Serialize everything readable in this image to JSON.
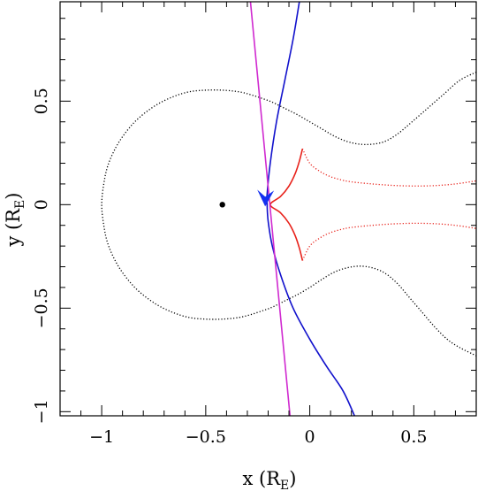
{
  "chart_data": {
    "type": "line",
    "title": "",
    "xlabel": {
      "text": "x (R",
      "sub": "E",
      "close": ")"
    },
    "ylabel": {
      "text": "y (R",
      "sub": "E",
      "close": ")"
    },
    "xlim": [
      -1.2,
      0.8
    ],
    "ylim": [
      -1.02,
      0.98
    ],
    "x_major_ticks": [
      -1,
      -0.5,
      0,
      0.5
    ],
    "x_minor_step": 0.1,
    "y_major_ticks": [
      -1,
      -0.5,
      0,
      0.5
    ],
    "y_minor_step": 0.1,
    "tick_labels_x": [
      "−1",
      "−0.5",
      "0",
      "0.5"
    ],
    "tick_labels_y": [
      "−1",
      "−0.5",
      "0",
      "0.5"
    ],
    "grid": false,
    "colors": {
      "critical_curve": "#000000",
      "caustic": "#e8211a",
      "source_trajectory": "#1111cc",
      "straight_line": "#d02ad0",
      "arrow": "#1430f0",
      "lens_point": "#000000"
    },
    "lens_point": {
      "x": -0.42,
      "y": 0.0
    },
    "series": [
      {
        "key": "critical_curve",
        "style": "dotted",
        "points": [
          [
            0.8,
            0.64
          ],
          [
            0.72,
            0.6
          ],
          [
            0.64,
            0.53
          ],
          [
            0.56,
            0.46
          ],
          [
            0.48,
            0.39
          ],
          [
            0.42,
            0.34
          ],
          [
            0.36,
            0.305
          ],
          [
            0.3,
            0.292
          ],
          [
            0.24,
            0.292
          ],
          [
            0.18,
            0.305
          ],
          [
            0.12,
            0.33
          ],
          [
            0.06,
            0.365
          ],
          [
            0.0,
            0.4
          ],
          [
            -0.06,
            0.435
          ],
          [
            -0.12,
            0.465
          ],
          [
            -0.18,
            0.495
          ],
          [
            -0.22,
            0.51
          ],
          [
            -0.28,
            0.53
          ],
          [
            -0.34,
            0.545
          ],
          [
            -0.42,
            0.553
          ],
          [
            -0.5,
            0.553
          ],
          [
            -0.58,
            0.545
          ],
          [
            -0.66,
            0.52
          ],
          [
            -0.74,
            0.48
          ],
          [
            -0.82,
            0.42
          ],
          [
            -0.88,
            0.355
          ],
          [
            -0.93,
            0.28
          ],
          [
            -0.97,
            0.19
          ],
          [
            -0.99,
            0.1
          ],
          [
            -1.0,
            0.0
          ],
          [
            -0.99,
            -0.1
          ],
          [
            -0.97,
            -0.19
          ],
          [
            -0.93,
            -0.28
          ],
          [
            -0.88,
            -0.355
          ],
          [
            -0.82,
            -0.42
          ],
          [
            -0.74,
            -0.48
          ],
          [
            -0.66,
            -0.52
          ],
          [
            -0.58,
            -0.545
          ],
          [
            -0.5,
            -0.553
          ],
          [
            -0.42,
            -0.553
          ],
          [
            -0.34,
            -0.545
          ],
          [
            -0.28,
            -0.53
          ],
          [
            -0.22,
            -0.51
          ],
          [
            -0.18,
            -0.495
          ],
          [
            -0.12,
            -0.465
          ],
          [
            -0.06,
            -0.435
          ],
          [
            0.0,
            -0.4
          ],
          [
            0.06,
            -0.36
          ],
          [
            0.12,
            -0.325
          ],
          [
            0.18,
            -0.305
          ],
          [
            0.24,
            -0.297
          ],
          [
            0.3,
            -0.305
          ],
          [
            0.36,
            -0.33
          ],
          [
            0.42,
            -0.38
          ],
          [
            0.48,
            -0.45
          ],
          [
            0.54,
            -0.52
          ],
          [
            0.6,
            -0.59
          ],
          [
            0.66,
            -0.65
          ],
          [
            0.72,
            -0.69
          ],
          [
            0.8,
            -0.73
          ]
        ]
      },
      {
        "key": "caustic_upper_tail",
        "style": "dotted",
        "points": [
          [
            -0.035,
            0.27
          ],
          [
            0.0,
            0.2
          ],
          [
            0.05,
            0.16
          ],
          [
            0.1,
            0.135
          ],
          [
            0.15,
            0.12
          ],
          [
            0.2,
            0.11
          ],
          [
            0.3,
            0.1
          ],
          [
            0.4,
            0.093
          ],
          [
            0.5,
            0.09
          ],
          [
            0.6,
            0.092
          ],
          [
            0.7,
            0.1
          ],
          [
            0.8,
            0.115
          ]
        ]
      },
      {
        "key": "caustic_lower_tail",
        "style": "dotted",
        "points": [
          [
            -0.035,
            -0.27
          ],
          [
            0.0,
            -0.2
          ],
          [
            0.05,
            -0.16
          ],
          [
            0.1,
            -0.135
          ],
          [
            0.15,
            -0.12
          ],
          [
            0.2,
            -0.11
          ],
          [
            0.3,
            -0.1
          ],
          [
            0.4,
            -0.093
          ],
          [
            0.5,
            -0.09
          ],
          [
            0.6,
            -0.092
          ],
          [
            0.7,
            -0.1
          ],
          [
            0.8,
            -0.115
          ]
        ]
      },
      {
        "key": "caustic",
        "style": "solid",
        "points": [
          [
            -0.035,
            0.27
          ],
          [
            -0.05,
            0.21
          ],
          [
            -0.07,
            0.15
          ],
          [
            -0.1,
            0.09
          ],
          [
            -0.14,
            0.04
          ],
          [
            -0.19,
            0.0
          ],
          [
            -0.14,
            -0.04
          ],
          [
            -0.1,
            -0.09
          ],
          [
            -0.07,
            -0.15
          ],
          [
            -0.05,
            -0.21
          ],
          [
            -0.035,
            -0.27
          ]
        ]
      },
      {
        "key": "caustic_left",
        "style": "solid",
        "points": [
          [
            -0.035,
            0.27
          ],
          [
            -0.05,
            0.22
          ],
          [
            -0.08,
            0.15
          ],
          [
            -0.12,
            0.09
          ],
          [
            -0.165,
            0.04
          ],
          [
            -0.19,
            0.0
          ],
          [
            -0.165,
            -0.04
          ],
          [
            -0.12,
            -0.09
          ],
          [
            -0.08,
            -0.15
          ],
          [
            -0.05,
            -0.22
          ],
          [
            -0.035,
            -0.27
          ]
        ]
      },
      {
        "key": "source_trajectory",
        "style": "solid",
        "points": [
          [
            -0.05,
            0.98
          ],
          [
            -0.08,
            0.8
          ],
          [
            -0.12,
            0.6
          ],
          [
            -0.16,
            0.4
          ],
          [
            -0.19,
            0.2
          ],
          [
            -0.205,
            0.05
          ],
          [
            -0.205,
            0.0
          ],
          [
            -0.2,
            -0.08
          ],
          [
            -0.18,
            -0.2
          ],
          [
            -0.14,
            -0.34
          ],
          [
            -0.08,
            -0.5
          ],
          [
            0.0,
            -0.65
          ],
          [
            0.08,
            -0.78
          ],
          [
            0.16,
            -0.9
          ],
          [
            0.215,
            -1.02
          ]
        ]
      },
      {
        "key": "straight_line",
        "style": "solid",
        "points": [
          [
            -0.285,
            0.98
          ],
          [
            -0.095,
            -1.02
          ]
        ]
      }
    ],
    "arrow": {
      "x": -0.21,
      "y": 0.0,
      "direction": "down"
    }
  }
}
